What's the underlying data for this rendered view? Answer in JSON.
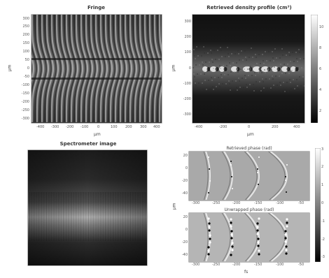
{
  "fringe": {
    "title": "Fringe",
    "ylabel": "μm",
    "xlabel": "μm",
    "yticks": [
      "300",
      "250",
      "200",
      "150",
      "100",
      "50",
      "0",
      "-50",
      "-100",
      "-150",
      "-200",
      "-250",
      "-300"
    ],
    "xticks": [
      "-400",
      "-300",
      "-200",
      "-100",
      "0",
      "100",
      "200",
      "300",
      "400"
    ]
  },
  "density": {
    "title": "Retrieved density profile (cm³)",
    "ylabel": "μm",
    "xlabel": "μm",
    "yticks": [
      "300",
      "200",
      "100",
      "0",
      "-100",
      "-200",
      "-300"
    ],
    "xticks": [
      "-400",
      "-200",
      "0",
      "200",
      "400"
    ],
    "cbar_ticks": [
      "10",
      "8",
      "6",
      "4",
      "2"
    ]
  },
  "spectrometer": {
    "title": "Spectrometer image"
  },
  "phase": {
    "top_title": "Retrieved phase (rad)",
    "bottom_title": "Unwrapped phase (rad)",
    "ylabel": "μm",
    "xlabel": "fs",
    "top_yticks": [
      "20",
      "0",
      "-20",
      "-40"
    ],
    "bottom_yticks": [
      "20",
      "0",
      "-20",
      "-40"
    ],
    "top_xticks": [
      "-300",
      "-250",
      "-200",
      "-150",
      "-100",
      "-50"
    ],
    "bottom_xticks": [
      "-300",
      "-250",
      "-200",
      "-150",
      "-100",
      "-50"
    ],
    "cbar_ticks": [
      "3",
      "2",
      "1",
      "0",
      "-1",
      "-2",
      "-3"
    ]
  }
}
